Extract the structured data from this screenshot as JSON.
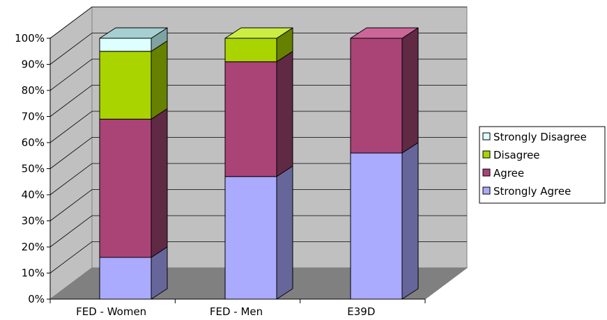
{
  "chart_data": {
    "type": "bar",
    "stacked": true,
    "percent": true,
    "three_d": true,
    "categories": [
      "FED - Women",
      "FED - Men",
      "E39D"
    ],
    "series": [
      {
        "name": "Strongly Agree",
        "values": [
          16,
          47,
          56
        ],
        "color": "#aaaaff",
        "side": "#66669a",
        "top": "#ccccff"
      },
      {
        "name": "Agree",
        "values": [
          53,
          44,
          44
        ],
        "color": "#aa4477",
        "side": "#602944",
        "top": "#cc6699"
      },
      {
        "name": "Disagree",
        "values": [
          26,
          9,
          0
        ],
        "color": "#aad400",
        "side": "#668000",
        "top": "#ccee44"
      },
      {
        "name": "Strongly Disagree",
        "values": [
          5,
          0,
          0
        ],
        "color": "#ddffff",
        "side": "#7fa3a3",
        "top": "#a6cfd2"
      }
    ],
    "ylim": [
      0,
      100
    ],
    "yticks": [
      "0%",
      "10%",
      "20%",
      "30%",
      "40%",
      "50%",
      "60%",
      "70%",
      "80%",
      "90%",
      "100%"
    ],
    "grid": true,
    "legend_position": "right",
    "colors": {
      "wall": "#c0c0c0",
      "floor": "#808080",
      "grid": "#000000"
    }
  }
}
